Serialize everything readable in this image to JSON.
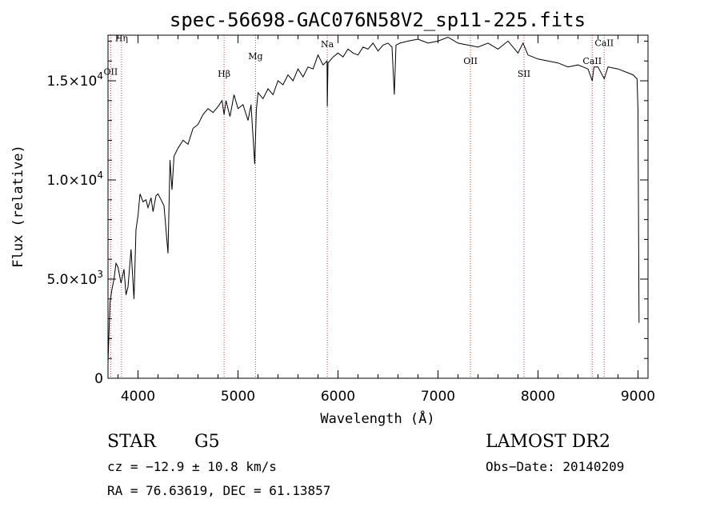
{
  "chart_data": {
    "type": "line",
    "title": "spec-56698-GAC076N58V2_sp11-225.fits",
    "xlabel": "Wavelength (Å)",
    "ylabel": "Flux (relative)",
    "xlim": [
      3700,
      9100
    ],
    "ylim": [
      0,
      17300
    ],
    "x_ticks": [
      4000,
      5000,
      6000,
      7000,
      8000,
      9000
    ],
    "x_tick_labels": [
      "4000",
      "5000",
      "6000",
      "7000",
      "8000",
      "9000"
    ],
    "y_ticks": [
      0,
      5000,
      10000,
      15000
    ],
    "y_tick_labels": [
      {
        "mant": "0",
        "exp": ""
      },
      {
        "mant": "5.0×10",
        "exp": "3"
      },
      {
        "mant": "1.0×10",
        "exp": "4"
      },
      {
        "mant": "1.5×10",
        "exp": "4"
      }
    ],
    "grid": false,
    "series": [
      {
        "x": [
          3700,
          3720,
          3740,
          3760,
          3780,
          3800,
          3830,
          3860,
          3880,
          3900,
          3930,
          3960,
          3980,
          4000,
          4020,
          4050,
          4080,
          4100,
          4130,
          4150,
          4180,
          4200,
          4230,
          4260,
          4300,
          4320,
          4340,
          4360,
          4400,
          4450,
          4500,
          4550,
          4600,
          4650,
          4700,
          4750,
          4800,
          4840,
          4861,
          4880,
          4920,
          4960,
          5000,
          5050,
          5100,
          5130,
          5167,
          5183,
          5200,
          5250,
          5300,
          5350,
          5400,
          5450,
          5500,
          5550,
          5600,
          5650,
          5700,
          5750,
          5800,
          5850,
          5890,
          5893,
          5900,
          5950,
          6000,
          6050,
          6100,
          6150,
          6200,
          6250,
          6300,
          6350,
          6400,
          6450,
          6500,
          6540,
          6563,
          6580,
          6620,
          6700,
          6800,
          6900,
          7000,
          7100,
          7200,
          7300,
          7400,
          7500,
          7600,
          7700,
          7800,
          7850,
          7900,
          8000,
          8100,
          8200,
          8300,
          8400,
          8500,
          8542,
          8560,
          8600,
          8662,
          8700,
          8800,
          8900,
          8950,
          8990,
          9000,
          9010
        ],
        "y": [
          800,
          3800,
          4500,
          5000,
          5800,
          5600,
          4800,
          5500,
          4200,
          4600,
          6500,
          4000,
          7500,
          8200,
          9300,
          8900,
          9000,
          8600,
          9100,
          8400,
          9200,
          9300,
          9000,
          8700,
          6300,
          11000,
          9500,
          11200,
          11600,
          12000,
          11800,
          12600,
          12800,
          13300,
          13600,
          13400,
          13700,
          14000,
          13300,
          14000,
          13200,
          14300,
          13600,
          13800,
          13000,
          13800,
          10800,
          13500,
          14400,
          14100,
          14600,
          14300,
          15000,
          14800,
          15300,
          15000,
          15600,
          15200,
          15700,
          15600,
          16300,
          15800,
          16000,
          13700,
          15900,
          16200,
          16400,
          16200,
          16600,
          16400,
          16300,
          16700,
          16600,
          16900,
          16500,
          16800,
          16900,
          16700,
          14300,
          16800,
          16900,
          17000,
          17100,
          16900,
          17000,
          17200,
          16900,
          16800,
          16700,
          16900,
          16600,
          17000,
          16400,
          16900,
          16300,
          16100,
          16000,
          15900,
          15700,
          15800,
          15600,
          15000,
          15700,
          15700,
          15100,
          15700,
          15600,
          15400,
          15300,
          15100,
          13500,
          2800
        ]
      }
    ],
    "lines": [
      {
        "label": "Hη",
        "x": 3835,
        "y": 17000
      },
      {
        "label": "OII",
        "x": 3727,
        "y": 15300
      },
      {
        "label": "Hβ",
        "x": 4861,
        "y": 15200
      },
      {
        "label": "Mg",
        "x": 5175,
        "y": 16100
      },
      {
        "label": "Na",
        "x": 5893,
        "y": 16700
      },
      {
        "label": "OII",
        "x": 7325,
        "y": 15850
      },
      {
        "label": "SII",
        "x": 7860,
        "y": 15200
      },
      {
        "label": "CaII",
        "x": 8542,
        "y": 15850
      },
      {
        "label": "CaII",
        "x": 8662,
        "y": 16750
      }
    ]
  },
  "info": {
    "class": "STAR",
    "subclass": "G5",
    "survey": "LAMOST DR2",
    "cz": "cz = −12.9 ± 10.8 km/s",
    "obs_date": "Obs−Date: 20140209",
    "radec": "RA =  76.63619, DEC =  61.13857"
  }
}
